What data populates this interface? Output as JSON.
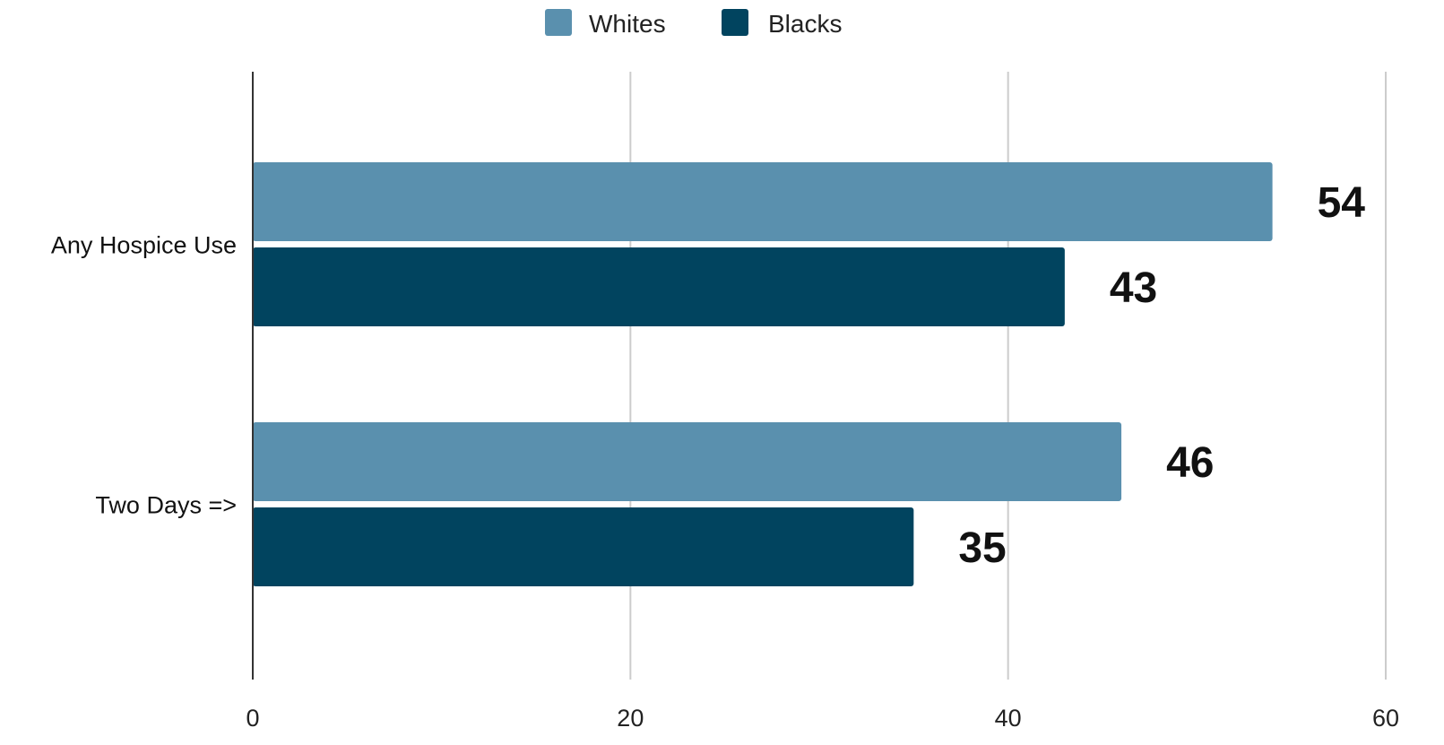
{
  "chart_data": {
    "type": "bar",
    "orientation": "horizontal",
    "categories": [
      "Any Hospice Use",
      "Two Days =>"
    ],
    "series": [
      {
        "name": "Whites",
        "values": [
          54,
          46
        ],
        "color": "#5a90ae"
      },
      {
        "name": "Blacks",
        "values": [
          43,
          35
        ],
        "color": "#01445f"
      }
    ],
    "xlim": [
      0,
      60
    ],
    "xticks": [
      0,
      20,
      40,
      60
    ],
    "grid": true,
    "legend_position": "top-center",
    "data_labels": true
  }
}
